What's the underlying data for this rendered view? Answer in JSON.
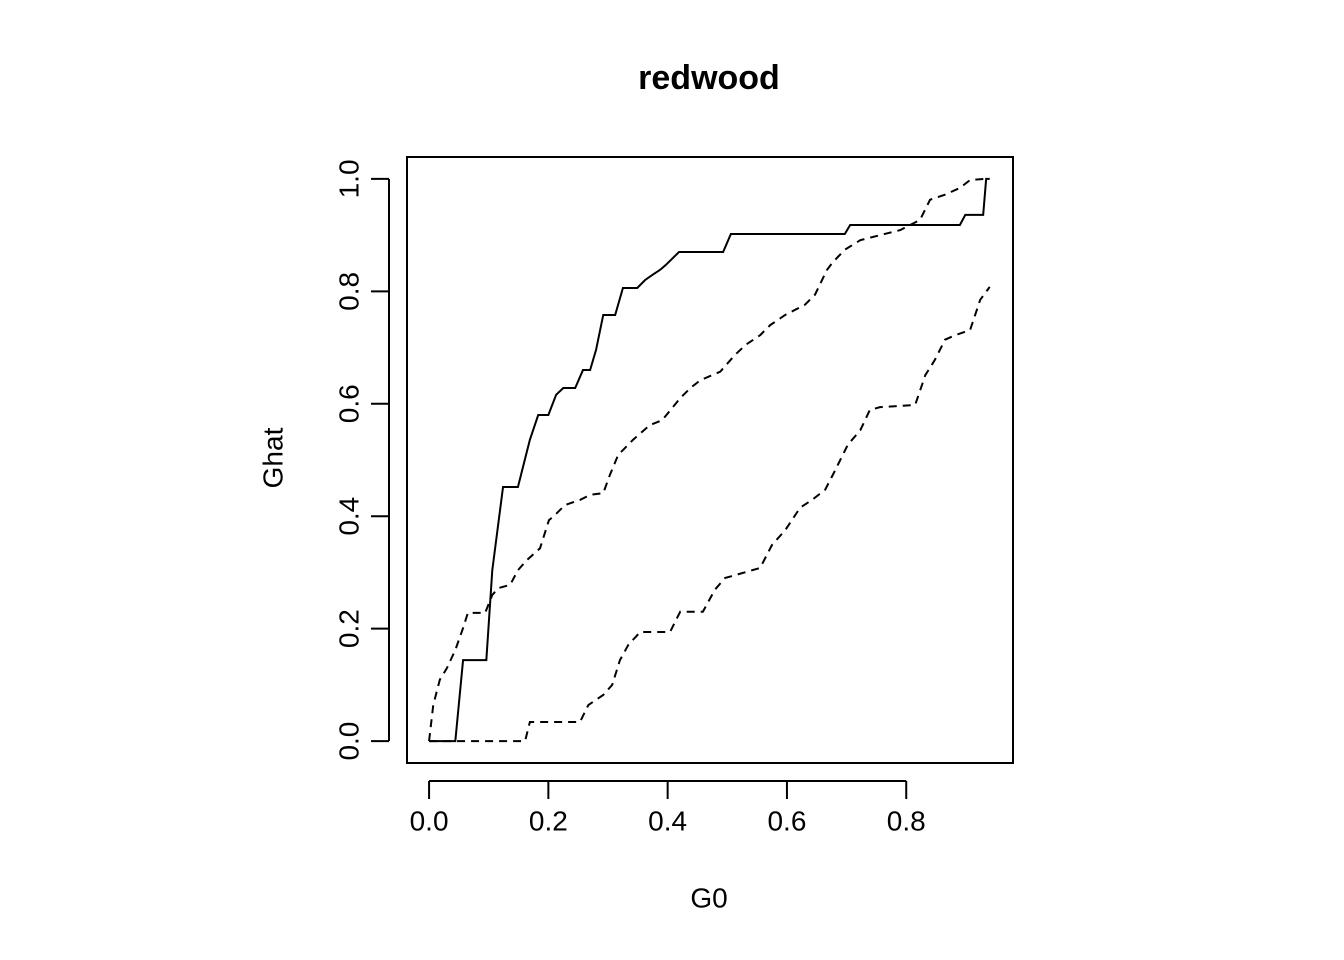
{
  "chart_data": {
    "type": "line",
    "title": "redwood",
    "x_label": "G0",
    "y_label": "Ghat",
    "xlim": [
      -0.037,
      0.979
    ],
    "ylim": [
      -0.039,
      1.039
    ],
    "xticks": [
      {
        "value": 0,
        "label": "0.0"
      },
      0.2,
      0.4,
      0.6,
      0.8
    ],
    "yticks": [
      {
        "value": 0,
        "label": "0.0"
      },
      0.2,
      0.4,
      0.6,
      0.8,
      {
        "value": 1,
        "label": "1.0"
      }
    ],
    "grid": false,
    "series": [
      {
        "color": "#000000",
        "dash": "solid",
        "x": [
          0,
          0.044,
          0.057,
          0.096,
          0.106,
          0.124,
          0.149,
          0.169,
          0.183,
          0.2,
          0.213,
          0.225,
          0.245,
          0.258,
          0.27,
          0.28,
          0.292,
          0.312,
          0.325,
          0.349,
          0.362,
          0.374,
          0.387,
          0.397,
          0.419,
          0.493,
          0.506,
          0.697,
          0.706,
          0.89,
          0.899,
          0.929,
          0.934,
          0.94
        ],
        "values": [
          0,
          0,
          0.144,
          0.144,
          0.304,
          0.452,
          0.452,
          0.536,
          0.58,
          0.58,
          0.616,
          0.628,
          0.628,
          0.66,
          0.66,
          0.696,
          0.758,
          0.758,
          0.806,
          0.806,
          0.82,
          0.829,
          0.838,
          0.847,
          0.87,
          0.87,
          0.902,
          0.902,
          0.918,
          0.918,
          0.936,
          0.936,
          1.0,
          1.0
        ]
      },
      {
        "color": "#000000",
        "dash": "dashed",
        "x": [
          0,
          0.007,
          0.018,
          0.03,
          0.044,
          0.057,
          0.065,
          0.094,
          0.106,
          0.116,
          0.136,
          0.149,
          0.164,
          0.186,
          0.201,
          0.211,
          0.228,
          0.253,
          0.27,
          0.292,
          0.303,
          0.317,
          0.342,
          0.37,
          0.391,
          0.421,
          0.438,
          0.455,
          0.488,
          0.513,
          0.531,
          0.555,
          0.572,
          0.597,
          0.63,
          0.647,
          0.667,
          0.677,
          0.697,
          0.723,
          0.756,
          0.79,
          0.823,
          0.84,
          0.865,
          0.89,
          0.907,
          0.932
        ],
        "values": [
          0,
          0.064,
          0.109,
          0.13,
          0.162,
          0.201,
          0.228,
          0.228,
          0.26,
          0.272,
          0.278,
          0.304,
          0.322,
          0.343,
          0.393,
          0.402,
          0.42,
          0.429,
          0.438,
          0.441,
          0.473,
          0.509,
          0.536,
          0.562,
          0.571,
          0.61,
          0.628,
          0.642,
          0.657,
          0.687,
          0.705,
          0.722,
          0.74,
          0.758,
          0.776,
          0.794,
          0.838,
          0.852,
          0.874,
          0.891,
          0.9,
          0.909,
          0.927,
          0.963,
          0.972,
          0.984,
          0.998,
          1.0
        ]
      },
      {
        "color": "#000000",
        "dash": "dashed",
        "x": [
          0,
          0.161,
          0.169,
          0.253,
          0.267,
          0.292,
          0.307,
          0.32,
          0.334,
          0.354,
          0.404,
          0.421,
          0.459,
          0.479,
          0.496,
          0.555,
          0.575,
          0.597,
          0.622,
          0.642,
          0.664,
          0.681,
          0.702,
          0.723,
          0.739,
          0.756,
          0.815,
          0.832,
          0.848,
          0.865,
          0.882,
          0.907,
          0.924,
          0.94
        ],
        "values": [
          0,
          0,
          0.034,
          0.034,
          0.064,
          0.082,
          0.1,
          0.144,
          0.171,
          0.194,
          0.194,
          0.23,
          0.23,
          0.269,
          0.29,
          0.308,
          0.349,
          0.375,
          0.415,
          0.429,
          0.447,
          0.482,
          0.527,
          0.553,
          0.589,
          0.594,
          0.598,
          0.651,
          0.678,
          0.714,
          0.722,
          0.731,
          0.785,
          0.808
        ]
      }
    ]
  }
}
